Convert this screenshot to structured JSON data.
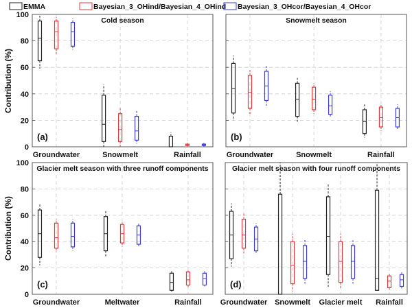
{
  "legend": [
    "EMMA",
    "Bayesian_3_OHind/Bayesian_4_OHind",
    "Bayesian_3_OHcor/Bayesian_4_OHcor"
  ],
  "colors": {
    "EMMA": "#222222",
    "OHind": "#e0393e",
    "OHcor": "#3b3bdc",
    "grid": "#cccccc"
  },
  "ylabel": "Contribution (%)",
  "chart_data": [
    {
      "type": "box",
      "panel": "(a)",
      "title": "Cold season",
      "ylim": [
        0,
        100
      ],
      "yticks": [
        0,
        20,
        40,
        60,
        80,
        100
      ],
      "categories": [
        "Groundwater",
        "Snowmelt",
        "Rainfall"
      ],
      "stats_order": [
        "min",
        "q1",
        "median",
        "q3",
        "max"
      ],
      "series": [
        {
          "name": "EMMA",
          "values": [
            [
              59,
              65,
              82,
              95,
              99
            ],
            [
              0,
              4,
              17,
              39,
              47
            ],
            [
              0,
              0,
              0,
              8,
              11
            ]
          ]
        },
        {
          "name": "Bayesian_3_OHind/Bayesian_4_OHind",
          "values": [
            [
              70,
              74,
              87,
              95,
              98
            ],
            [
              0,
              4,
              13,
              25,
              30
            ],
            [
              0,
              1,
              1.5,
              2,
              3
            ]
          ]
        },
        {
          "name": "Bayesian_3_OHcor/Bayesian_4_OHcor",
          "values": [
            [
              73,
              76,
              87,
              94,
              97
            ],
            [
              2,
              5,
              12,
              23,
              27
            ],
            [
              0,
              1,
              1.5,
              2,
              3
            ]
          ]
        }
      ]
    },
    {
      "type": "box",
      "panel": "(b)",
      "title": "Snowmelt season",
      "ylim": [
        0,
        100
      ],
      "yticks": [
        0,
        20,
        40,
        60,
        80,
        100
      ],
      "categories": [
        "Groundwater",
        "Snowmelt",
        "Rainfall"
      ],
      "stats_order": [
        "min",
        "q1",
        "median",
        "q3",
        "max"
      ],
      "series": [
        {
          "name": "EMMA",
          "values": [
            [
              20,
              25.5,
              44,
              63,
              69
            ],
            [
              19,
              23,
              36,
              48,
              52
            ],
            [
              7,
              10,
              19,
              28,
              32
            ]
          ]
        },
        {
          "name": "Bayesian_3_OHind/Bayesian_4_OHind",
          "values": [
            [
              24.5,
              29,
              41,
              54,
              58
            ],
            [
              25,
              28,
              36,
              45,
              48
            ],
            [
              12,
              15,
              22,
              30,
              32
            ]
          ]
        },
        {
          "name": "Bayesian_3_OHcor/Bayesian_4_OHcor",
          "values": [
            [
              31,
              35,
              46,
              57,
              61
            ],
            [
              22,
              24.5,
              31,
              39,
              42
            ],
            [
              13,
              15,
              22,
              29,
              32
            ]
          ]
        }
      ]
    },
    {
      "type": "box",
      "panel": "(c)",
      "title": "Glacier melt season with three runoff components",
      "ylim": [
        0,
        100
      ],
      "yticks": [
        0,
        20,
        40,
        60,
        80,
        100
      ],
      "categories": [
        "Groundwater",
        "Meltwater",
        "Rainfall"
      ],
      "stats_order": [
        "min",
        "q1",
        "median",
        "q3",
        "max"
      ],
      "series": [
        {
          "name": "EMMA",
          "values": [
            [
              22,
              28,
              46,
              64,
              69
            ],
            [
              28,
              33,
              46,
              59,
              64
            ],
            [
              2,
              3,
              9,
              16,
              18
            ]
          ]
        },
        {
          "name": "Bayesian_3_OHind/Bayesian_4_OHind",
          "values": [
            [
              32,
              35,
              43,
              54,
              57
            ],
            [
              36,
              39,
              46,
              53,
              55
            ],
            [
              5,
              7,
              11,
              17,
              18
            ]
          ]
        },
        {
          "name": "Bayesian_3_OHcor/Bayesian_4_OHcor",
          "values": [
            [
              33,
              36,
              44,
              54,
              57
            ],
            [
              36,
              38,
              45,
              52,
              54
            ],
            [
              6,
              7,
              12,
              16,
              18
            ]
          ]
        }
      ]
    },
    {
      "type": "box",
      "panel": "(d)",
      "title": "Glacier melt season with four runoff components",
      "ylim": [
        0,
        100
      ],
      "yticks": [
        0,
        20,
        40,
        60,
        80,
        100
      ],
      "categories": [
        "Groundwater",
        "Snowmelt",
        "Glacier melt",
        "Rainfall"
      ],
      "stats_order": [
        "min",
        "q1",
        "median",
        "q3",
        "max"
      ],
      "series": [
        {
          "name": "EMMA",
          "values": [
            [
              21,
              27,
              45,
              63,
              69
            ],
            [
              0,
              0,
              0,
              76,
              100
            ],
            [
              5,
              15,
              44,
              74,
              84
            ],
            [
              3,
              3,
              12,
              79,
              100
            ]
          ]
        },
        {
          "name": "Bayesian_3_OHind/Bayesian_4_OHind",
          "values": [
            [
              31,
              35,
              45,
              57,
              62
            ],
            [
              2,
              8,
              22,
              40,
              46
            ],
            [
              4,
              9,
              25,
              40,
              46
            ],
            [
              3,
              5,
              10,
              14,
              16
            ]
          ]
        },
        {
          "name": "Bayesian_3_OHcor/Bayesian_4_OHcor",
          "values": [
            [
              31,
              33,
              42,
              51,
              54
            ],
            [
              8,
              12,
              25,
              37,
              42
            ],
            [
              8,
              12,
              25,
              37,
              41
            ],
            [
              4,
              6,
              11,
              15,
              17
            ]
          ]
        }
      ]
    }
  ]
}
